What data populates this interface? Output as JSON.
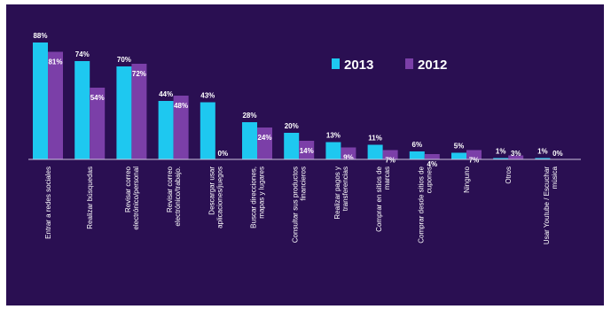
{
  "chart_data": {
    "type": "bar",
    "categories": [
      "Entrar a redes sociales",
      "Realizar búsquedas",
      "Revisar correo electrónico/personal",
      "Revisar correo electrónico/trabajo.",
      "Descargar usar aplicaciones/juegos",
      "Buscar direcciones, mapas y lugares",
      "Consultar sus productos financieros",
      "Realizar pagos y transferencias",
      "Comprar en sitios de marcas",
      "Comprar desde sitios de cupones",
      "Ninguno",
      "Otros",
      "Usar Youtube / Escuchar música"
    ],
    "series": [
      {
        "name": "2013",
        "values": [
          88,
          74,
          70,
          44,
          43,
          28,
          20,
          13,
          11,
          6,
          5,
          1,
          1
        ]
      },
      {
        "name": "2012",
        "values": [
          81,
          54,
          72,
          48,
          0,
          24,
          14,
          9,
          7,
          4,
          7,
          3,
          0
        ]
      }
    ],
    "value_labels": [
      [
        "88%",
        "74%",
        "70%",
        "44%",
        "43%",
        "28%",
        "20%",
        "13%",
        "11%",
        "6%",
        "5%",
        "1%",
        "1%"
      ],
      [
        "81%",
        "54%",
        "72%",
        "48%",
        "0%",
        "24%",
        "14%",
        "9%",
        "7%",
        "4%",
        "7%",
        "3%",
        "0%"
      ]
    ],
    "ylim": [
      0,
      100
    ],
    "grid": false,
    "legend_position": "top-right",
    "colors": {
      "2013": "#1ec8f0",
      "2012": "#7b3fa8",
      "background": "#2a0f52",
      "text": "#ffffff",
      "axis": "#cfc6e0"
    }
  }
}
